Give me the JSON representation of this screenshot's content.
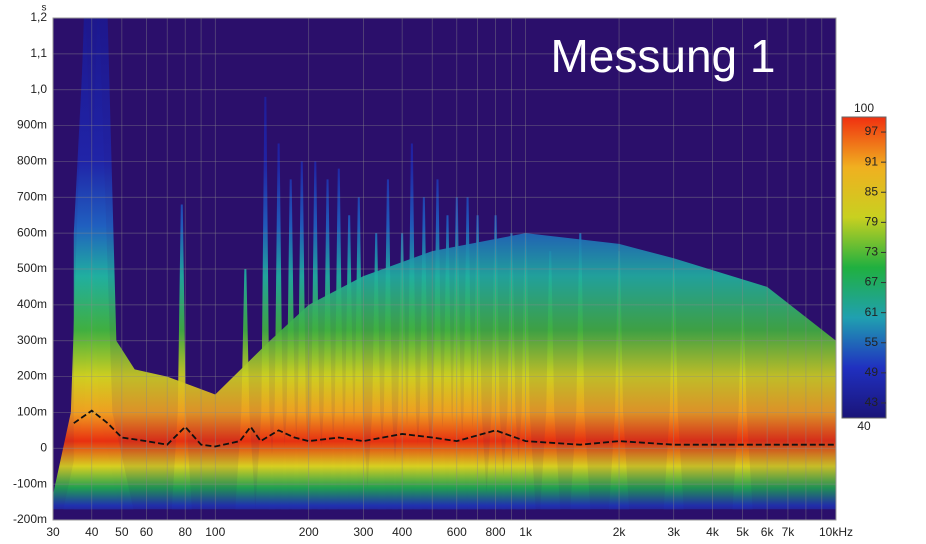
{
  "chart_data": {
    "type": "waterfall",
    "title": "Messung 1",
    "y_unit": "s",
    "background": "#2b0f6b",
    "xscale": "log",
    "xlim": [
      30,
      10000
    ],
    "ylim": [
      -0.2,
      1.2
    ],
    "xticks": [
      30,
      40,
      50,
      60,
      80,
      100,
      200,
      300,
      400,
      600,
      800,
      {
        "value": 1000,
        "label": "1k"
      },
      {
        "value": 2000,
        "label": "2k"
      },
      {
        "value": 3000,
        "label": "3k"
      },
      {
        "value": 4000,
        "label": "4k"
      },
      {
        "value": 5000,
        "label": "5k"
      },
      {
        "value": 6000,
        "label": "6k"
      },
      {
        "value": 7000,
        "label": "7k"
      },
      {
        "value": 10000,
        "label": "10kHz"
      }
    ],
    "xminor": [
      70,
      90,
      500,
      700,
      900,
      8000,
      9000
    ],
    "yticks": [
      {
        "value": -0.2,
        "label": "-200m"
      },
      {
        "value": -0.1,
        "label": "-100m"
      },
      0,
      {
        "value": 0.1,
        "label": "100m"
      },
      {
        "value": 0.2,
        "label": "200m"
      },
      {
        "value": 0.3,
        "label": "300m"
      },
      {
        "value": 0.4,
        "label": "400m"
      },
      {
        "value": 0.5,
        "label": "500m"
      },
      {
        "value": 0.6,
        "label": "600m"
      },
      {
        "value": 0.7,
        "label": "700m"
      },
      {
        "value": 0.8,
        "label": "800m"
      },
      {
        "value": 0.9,
        "label": "900m"
      },
      {
        "value": 1.0,
        "label": "1,0"
      },
      {
        "value": 1.1,
        "label": "1,1"
      },
      {
        "value": 1.2,
        "label": "1,2"
      }
    ],
    "envelope": {
      "x": [
        35,
        38,
        45,
        48,
        55,
        70,
        100,
        150,
        200,
        300,
        500,
        1000,
        2000,
        3000,
        6000,
        10000
      ],
      "y": [
        0.6,
        1.2,
        1.2,
        0.3,
        0.22,
        0.2,
        0.15,
        0.3,
        0.4,
        0.48,
        0.55,
        0.6,
        0.57,
        0.53,
        0.45,
        0.3
      ]
    },
    "peaks": {
      "x": [
        38,
        42,
        78,
        125,
        145,
        160,
        175,
        190,
        210,
        230,
        250,
        270,
        290,
        330,
        360,
        400,
        430,
        470,
        520,
        560,
        600,
        650,
        700,
        800,
        900,
        1000,
        1200,
        1500,
        2000,
        3000,
        5000
      ],
      "y": [
        1.2,
        1.2,
        0.68,
        0.5,
        0.98,
        0.85,
        0.75,
        0.8,
        0.8,
        0.75,
        0.78,
        0.65,
        0.7,
        0.6,
        0.75,
        0.6,
        0.85,
        0.7,
        0.75,
        0.65,
        0.7,
        0.7,
        0.65,
        0.65,
        0.6,
        0.6,
        0.55,
        0.6,
        0.55,
        0.5,
        0.4
      ]
    },
    "decay": {
      "x": [
        35,
        40,
        45,
        50,
        60,
        70,
        80,
        90,
        100,
        120,
        130,
        140,
        160,
        180,
        200,
        250,
        300,
        400,
        500,
        600,
        800,
        1000,
        1500,
        2000,
        3000,
        5000,
        10000
      ],
      "y": [
        0.07,
        0.105,
        0.07,
        0.03,
        0.02,
        0.01,
        0.06,
        0.01,
        0.005,
        0.02,
        0.06,
        0.02,
        0.05,
        0.03,
        0.02,
        0.03,
        0.02,
        0.04,
        0.03,
        0.02,
        0.05,
        0.02,
        0.01,
        0.02,
        0.01,
        0.01,
        0.01
      ],
      "color": "#111111"
    },
    "colorbar": {
      "lim": [
        40,
        100
      ],
      "ticks": [
        97,
        91,
        85,
        79,
        73,
        67,
        61,
        55,
        49,
        43
      ],
      "colors": [
        "#1a1478",
        "#2030c0",
        "#20a0b0",
        "#20b040",
        "#c8d020",
        "#f0b020",
        "#f03010"
      ]
    }
  }
}
